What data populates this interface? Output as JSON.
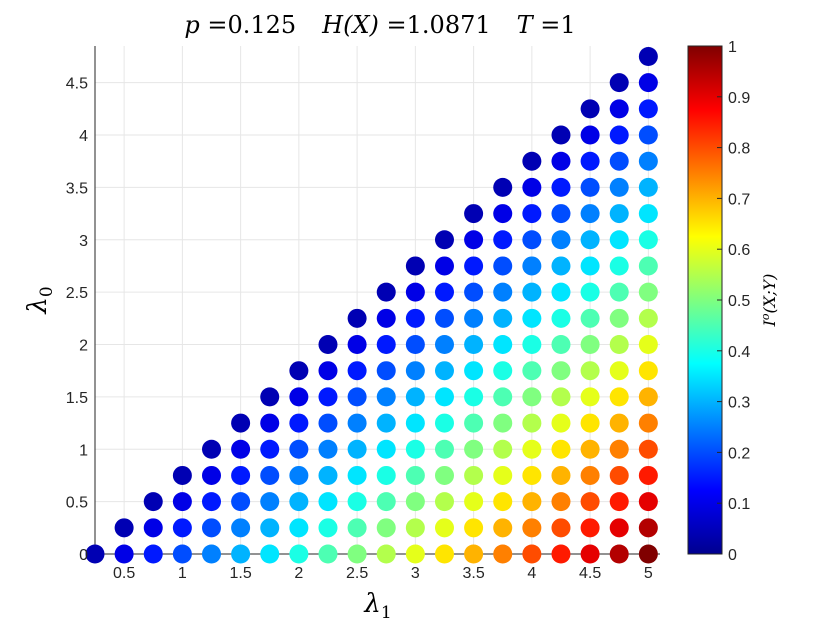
{
  "chart_data": {
    "type": "scatter",
    "title": "p = 0.125    H(X) = 1.0871    T = 1",
    "title_parts": [
      {
        "math": "p",
        "text": " =0.125"
      },
      {
        "math": "H(X)",
        "text": " =1.0871"
      },
      {
        "math": "T",
        "text": " =1"
      }
    ],
    "xlabel": "λ₁",
    "xlabel_base": "λ",
    "xlabel_sub": "1",
    "ylabel": "λ₀",
    "ylabel_base": "λ",
    "ylabel_sub": "0",
    "colorbar_label": "Iᵒ(X;Y)",
    "colorbar_label_parts": {
      "base": "I",
      "sup": "o",
      "args": "(X;Y)"
    },
    "xlim": [
      0.25,
      5.1
    ],
    "ylim": [
      0,
      4.85
    ],
    "xticks": [
      0.5,
      1,
      1.5,
      2,
      2.5,
      3,
      3.5,
      4,
      4.5,
      5
    ],
    "xtick_labels": [
      "0.5",
      "1",
      "1.5",
      "2",
      "2.5",
      "3",
      "3.5",
      "4",
      "4.5",
      "5"
    ],
    "yticks": [
      0,
      0.5,
      1,
      1.5,
      2,
      2.5,
      3,
      3.5,
      4,
      4.5
    ],
    "ytick_labels": [
      "0",
      "0.5",
      "1",
      "1.5",
      "2",
      "2.5",
      "3",
      "3.5",
      "4",
      "4.5"
    ],
    "colorbar_ticks": [
      0,
      0.1,
      0.2,
      0.3,
      0.4,
      0.5,
      0.6,
      0.7,
      0.8,
      0.9,
      1
    ],
    "colorbar_tick_labels": [
      "0",
      "0.1",
      "0.2",
      "0.3",
      "0.4",
      "0.5",
      "0.6",
      "0.7",
      "0.8",
      "0.9",
      "1"
    ],
    "colorbar_range": [
      0,
      1
    ],
    "colormap": "jet",
    "grid": true,
    "x_grid_values": [
      0.25,
      0.5,
      0.75,
      1.0,
      1.25,
      1.5,
      1.75,
      2.0,
      2.25,
      2.5,
      2.75,
      3.0,
      3.25,
      3.5,
      3.75,
      4.0,
      4.25,
      4.5,
      4.75,
      5.0
    ],
    "y_step": 0.25,
    "constraint": "λ₀ ≤ λ₁",
    "intensity_model": "I ≈ (λ₁ − λ₀) / 5, rounded",
    "points_note": "For each λ₁ in x_grid_values, a point at every λ₀ = 0, 0.25, …, up to λ₁ − 0.25 (and λ₀ = 0 for λ₁ = 0.25); color encodes Iᵒ(X;Y) from 0 (dark blue) to 1 (dark red)."
  }
}
